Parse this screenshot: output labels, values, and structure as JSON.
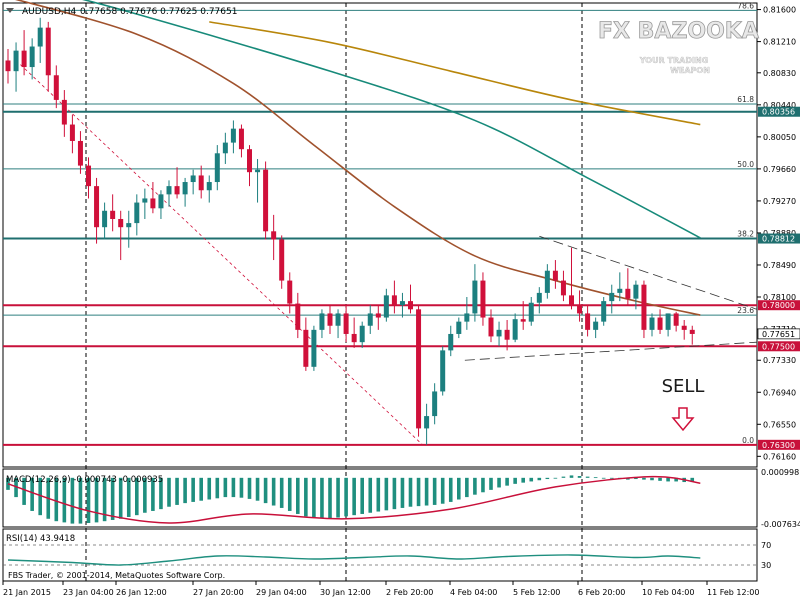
{
  "header": {
    "symbol": "AUDUSD,H4",
    "ohlc": "0.77658 0.77676 0.77625 0.77651"
  },
  "watermark": {
    "brand": "FX BAZOOKA",
    "tagline_line1": "YOUR TRADING",
    "tagline_line2": "WEAPON"
  },
  "annotation": {
    "sell_label": "SELL"
  },
  "footer": {
    "copyright": "FBS Trader, © 2001-2014, MetaQuotes Software Corp."
  },
  "colors": {
    "bull": "#1c7f7f",
    "bear": "#d0103a",
    "ma_fast": "#a0522d",
    "ma_slow": "#b8860b",
    "ma_mid": "#178a7a",
    "hline_red": "#c8103a",
    "hline_teal": "#1f6f6f",
    "macd_hist": "#1f8f7f",
    "macd_signal": "#c8103a",
    "rsi": "#1f8f7f"
  },
  "chart_data": [
    {
      "type": "candlestick",
      "name": "AUDUSD,H4",
      "ylim": [
        0.7603,
        0.8168
      ],
      "y_ticks": [
        "0.81600",
        "0.81210",
        "0.80830",
        "0.80440",
        "0.80050",
        "0.79660",
        "0.79270",
        "0.78880",
        "0.78490",
        "0.78100",
        "0.77710",
        "0.77330",
        "0.76940",
        "0.76550",
        "0.76160"
      ],
      "x_ticks": [
        "21 Jan 2015",
        "23 Jan 04:00",
        "26 Jan 12:00",
        "27 Jan 20:00",
        "29 Jan 04:00",
        "30 Jan 12:00",
        "2 Feb 20:00",
        "4 Feb 04:00",
        "5 Feb 12:00",
        "6 Feb 20:00",
        "10 Feb 04:00",
        "11 Feb 12:00"
      ],
      "horizontal_levels": [
        {
          "value": "0.80356",
          "color": "#1f6f6f"
        },
        {
          "value": "0.78812",
          "color": "#1f6f6f"
        },
        {
          "value": "0.78000",
          "color": "#c8103a"
        },
        {
          "value": "0.77500",
          "color": "#c8103a"
        },
        {
          "value": "0.76300",
          "color": "#c8103a"
        }
      ],
      "current_price": "0.77651",
      "fibonacci": [
        {
          "level": "78.6",
          "price": 0.8159
        },
        {
          "level": "61.8",
          "price": 0.8045
        },
        {
          "level": "50.0",
          "price": 0.7966
        },
        {
          "level": "38.2",
          "price": 0.78812
        },
        {
          "level": "23.6",
          "price": 0.7788
        },
        {
          "level": "0.0",
          "price": 0.763
        }
      ],
      "candles": [
        [
          0.8098,
          0.8112,
          0.807,
          0.8085
        ],
        [
          0.8085,
          0.812,
          0.806,
          0.811
        ],
        [
          0.811,
          0.8135,
          0.808,
          0.809
        ],
        [
          0.809,
          0.8125,
          0.8075,
          0.8115
        ],
        [
          0.8115,
          0.815,
          0.8095,
          0.8138
        ],
        [
          0.8138,
          0.8145,
          0.806,
          0.808
        ],
        [
          0.808,
          0.8092,
          0.804,
          0.805
        ],
        [
          0.805,
          0.8062,
          0.8005,
          0.802
        ],
        [
          0.802,
          0.8032,
          0.7985,
          0.8
        ],
        [
          0.8,
          0.8012,
          0.796,
          0.797
        ],
        [
          0.797,
          0.798,
          0.793,
          0.7945
        ],
        [
          0.7945,
          0.7955,
          0.7875,
          0.7895
        ],
        [
          0.7895,
          0.7925,
          0.788,
          0.7915
        ],
        [
          0.7915,
          0.7935,
          0.789,
          0.7905
        ],
        [
          0.7905,
          0.7915,
          0.7855,
          0.7895
        ],
        [
          0.7895,
          0.7915,
          0.787,
          0.79
        ],
        [
          0.79,
          0.7935,
          0.7885,
          0.7925
        ],
        [
          0.7925,
          0.7942,
          0.7905,
          0.793
        ],
        [
          0.793,
          0.795,
          0.7912,
          0.7918
        ],
        [
          0.7918,
          0.794,
          0.7905,
          0.7935
        ],
        [
          0.7935,
          0.7952,
          0.792,
          0.7945
        ],
        [
          0.7945,
          0.7968,
          0.793,
          0.7935
        ],
        [
          0.7935,
          0.7955,
          0.792,
          0.795
        ],
        [
          0.795,
          0.7965,
          0.7935,
          0.7958
        ],
        [
          0.7958,
          0.797,
          0.793,
          0.794
        ],
        [
          0.794,
          0.7958,
          0.7925,
          0.795
        ],
        [
          0.795,
          0.7995,
          0.794,
          0.7985
        ],
        [
          0.7985,
          0.801,
          0.7972,
          0.7998
        ],
        [
          0.7998,
          0.8025,
          0.7985,
          0.8015
        ],
        [
          0.8015,
          0.802,
          0.798,
          0.799
        ],
        [
          0.799,
          0.7995,
          0.7945,
          0.7962
        ],
        [
          0.7962,
          0.7978,
          0.7925,
          0.7965
        ],
        [
          0.7965,
          0.7975,
          0.788,
          0.789
        ],
        [
          0.789,
          0.791,
          0.7855,
          0.788
        ],
        [
          0.788,
          0.7885,
          0.782,
          0.783
        ],
        [
          0.783,
          0.784,
          0.779,
          0.7802
        ],
        [
          0.7802,
          0.7815,
          0.776,
          0.777
        ],
        [
          0.777,
          0.7785,
          0.772,
          0.7725
        ],
        [
          0.7725,
          0.7775,
          0.772,
          0.777
        ],
        [
          0.777,
          0.7795,
          0.776,
          0.779
        ],
        [
          0.779,
          0.78,
          0.7765,
          0.7775
        ],
        [
          0.7775,
          0.7795,
          0.776,
          0.779
        ],
        [
          0.779,
          0.78,
          0.7755,
          0.7765
        ],
        [
          0.7765,
          0.7785,
          0.7748,
          0.7755
        ],
        [
          0.7755,
          0.778,
          0.7748,
          0.7775
        ],
        [
          0.7775,
          0.78,
          0.7765,
          0.779
        ],
        [
          0.779,
          0.78,
          0.777,
          0.7785
        ],
        [
          0.7785,
          0.782,
          0.778,
          0.7812
        ],
        [
          0.7812,
          0.783,
          0.779,
          0.78
        ],
        [
          0.78,
          0.7815,
          0.7785,
          0.7805
        ],
        [
          0.7805,
          0.7825,
          0.779,
          0.7795
        ],
        [
          0.7795,
          0.78,
          0.764,
          0.765
        ],
        [
          0.765,
          0.768,
          0.763,
          0.7665
        ],
        [
          0.7665,
          0.7705,
          0.7655,
          0.7695
        ],
        [
          0.7695,
          0.775,
          0.769,
          0.7745
        ],
        [
          0.7745,
          0.7775,
          0.7738,
          0.7765
        ],
        [
          0.7765,
          0.7785,
          0.776,
          0.778
        ],
        [
          0.778,
          0.781,
          0.777,
          0.779
        ],
        [
          0.779,
          0.785,
          0.778,
          0.783
        ],
        [
          0.783,
          0.784,
          0.7775,
          0.7785
        ],
        [
          0.7785,
          0.7795,
          0.7755,
          0.7762
        ],
        [
          0.7762,
          0.778,
          0.775,
          0.777
        ],
        [
          0.777,
          0.7782,
          0.7745,
          0.7758
        ],
        [
          0.7758,
          0.779,
          0.7755,
          0.7783
        ],
        [
          0.7783,
          0.7805,
          0.777,
          0.778
        ],
        [
          0.778,
          0.781,
          0.7775,
          0.7803
        ],
        [
          0.7803,
          0.7822,
          0.779,
          0.7815
        ],
        [
          0.7815,
          0.785,
          0.7808,
          0.7842
        ],
        [
          0.7842,
          0.7855,
          0.782,
          0.783
        ],
        [
          0.783,
          0.7842,
          0.7805,
          0.7812
        ],
        [
          0.7812,
          0.787,
          0.7795,
          0.78
        ],
        [
          0.78,
          0.7818,
          0.778,
          0.779
        ],
        [
          0.779,
          0.78,
          0.7762,
          0.777
        ],
        [
          0.777,
          0.7785,
          0.776,
          0.778
        ],
        [
          0.778,
          0.781,
          0.7775,
          0.7805
        ],
        [
          0.7805,
          0.7825,
          0.779,
          0.7815
        ],
        [
          0.7815,
          0.784,
          0.7805,
          0.782
        ],
        [
          0.782,
          0.7845,
          0.78,
          0.7808
        ],
        [
          0.7808,
          0.783,
          0.7795,
          0.7825
        ],
        [
          0.7825,
          0.783,
          0.776,
          0.777
        ],
        [
          0.777,
          0.779,
          0.7762,
          0.7785
        ],
        [
          0.7785,
          0.7795,
          0.7765,
          0.777
        ],
        [
          0.777,
          0.779,
          0.7762,
          0.779
        ],
        [
          0.779,
          0.7792,
          0.7768,
          0.7775
        ],
        [
          0.7775,
          0.7782,
          0.7758,
          0.777
        ],
        [
          0.777,
          0.7775,
          0.7752,
          0.7765
        ]
      ],
      "sma_teal": [
        [
          0,
          0.8195
        ],
        [
          14,
          0.816
        ],
        [
          40,
          0.8085
        ],
        [
          58,
          0.8025
        ],
        [
          72,
          0.7955
        ],
        [
          86,
          0.7882
        ]
      ],
      "sma_brown": [
        [
          0,
          0.8175
        ],
        [
          16,
          0.813
        ],
        [
          28,
          0.807
        ],
        [
          38,
          0.7995
        ],
        [
          48,
          0.792
        ],
        [
          58,
          0.786
        ],
        [
          68,
          0.783
        ],
        [
          78,
          0.7805
        ],
        [
          86,
          0.7788
        ]
      ],
      "sma_gold": [
        [
          25,
          0.8145
        ],
        [
          40,
          0.812
        ],
        [
          55,
          0.8085
        ],
        [
          70,
          0.805
        ],
        [
          86,
          0.802
        ]
      ]
    },
    {
      "type": "bar",
      "name": "MACD(12,26,9) -0.000743 -0.000935",
      "y_ticks": [
        "0.000998",
        "-0.007634"
      ],
      "ylim": [
        -0.008,
        0.0013
      ],
      "histogram": [
        -0.002,
        -0.0032,
        -0.0045,
        -0.0055,
        -0.0062,
        -0.0068,
        -0.0072,
        -0.0074,
        -0.0076,
        -0.0076,
        -0.0075,
        -0.0074,
        -0.0072,
        -0.007,
        -0.0068,
        -0.0065,
        -0.0062,
        -0.0058,
        -0.0055,
        -0.0052,
        -0.0048,
        -0.0045,
        -0.0042,
        -0.004,
        -0.0038,
        -0.0036,
        -0.0034,
        -0.0032,
        -0.0032,
        -0.0033,
        -0.0035,
        -0.0038,
        -0.0042,
        -0.0046,
        -0.005,
        -0.0055,
        -0.006,
        -0.0064,
        -0.0066,
        -0.0067,
        -0.0067,
        -0.0066,
        -0.0064,
        -0.0062,
        -0.006,
        -0.0058,
        -0.0056,
        -0.0054,
        -0.0052,
        -0.005,
        -0.0048,
        -0.0047,
        -0.0046,
        -0.0045,
        -0.0043,
        -0.004,
        -0.0036,
        -0.0032,
        -0.0028,
        -0.0024,
        -0.002,
        -0.0016,
        -0.0013,
        -0.001,
        -0.0008,
        -0.0006,
        -0.0004,
        -0.0002,
        0.0,
        0.0002,
        0.0004,
        0.0003,
        0.0002,
        0.0001,
        0.0,
        -0.0001,
        -0.0002,
        -0.0003,
        -0.0002,
        -0.0003,
        -0.0004,
        -0.0005,
        -0.0006,
        -0.0006,
        -0.0007,
        -0.0007
      ],
      "signal": [
        [
          0,
          -0.001
        ],
        [
          10,
          -0.0055
        ],
        [
          20,
          -0.0075
        ],
        [
          30,
          -0.006
        ],
        [
          42,
          -0.0068
        ],
        [
          55,
          -0.0052
        ],
        [
          68,
          -0.0015
        ],
        [
          80,
          0.0002
        ],
        [
          86,
          -0.0009
        ]
      ]
    },
    {
      "type": "line",
      "name": "RSI(14) 43.9418",
      "ylim": [
        0,
        100
      ],
      "y_ticks": [
        "70",
        "30"
      ],
      "values": [
        [
          0,
          40
        ],
        [
          8,
          35
        ],
        [
          14,
          30
        ],
        [
          20,
          38
        ],
        [
          26,
          48
        ],
        [
          32,
          46
        ],
        [
          38,
          42
        ],
        [
          44,
          45
        ],
        [
          50,
          48
        ],
        [
          56,
          42
        ],
        [
          62,
          47
        ],
        [
          70,
          50
        ],
        [
          78,
          45
        ],
        [
          82,
          48
        ],
        [
          86,
          44
        ]
      ]
    }
  ]
}
